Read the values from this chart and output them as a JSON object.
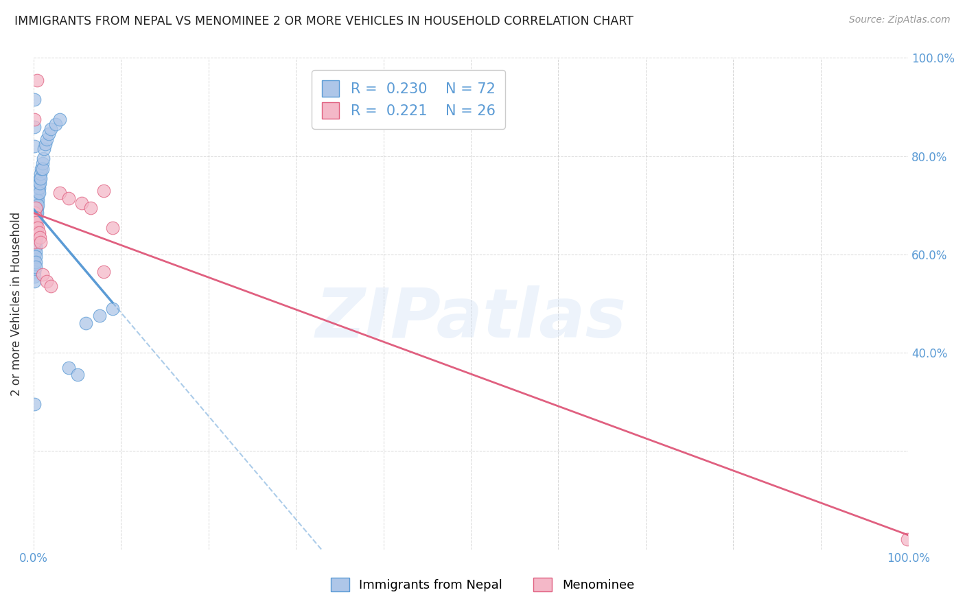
{
  "title": "IMMIGRANTS FROM NEPAL VS MENOMINEE 2 OR MORE VEHICLES IN HOUSEHOLD CORRELATION CHART",
  "source": "Source: ZipAtlas.com",
  "ylabel": "2 or more Vehicles in Household",
  "legend_blue_R": "0.230",
  "legend_blue_N": "72",
  "legend_pink_R": "0.221",
  "legend_pink_N": "26",
  "watermark_text": "ZIPatlas",
  "blue_line_color": "#5b9bd5",
  "pink_line_color": "#e06080",
  "blue_scatter_facecolor": "#aec6e8",
  "blue_scatter_edgecolor": "#5b9bd5",
  "pink_scatter_facecolor": "#f4b8c8",
  "pink_scatter_edgecolor": "#e06080",
  "background_color": "#ffffff",
  "grid_color": "#cccccc",
  "title_color": "#222222",
  "right_axis_color": "#5b9bd5",
  "xmin": 0.0,
  "xmax": 1.0,
  "ymin": 0.0,
  "ymax": 1.0,
  "blue_x": [
    0.0005,
    0.001,
    0.001,
    0.001,
    0.001,
    0.001,
    0.001,
    0.001,
    0.001,
    0.001,
    0.001,
    0.001,
    0.001,
    0.001,
    0.001,
    0.001,
    0.001,
    0.001,
    0.001,
    0.001,
    0.001,
    0.002,
    0.002,
    0.002,
    0.002,
    0.002,
    0.002,
    0.002,
    0.002,
    0.002,
    0.002,
    0.002,
    0.002,
    0.002,
    0.003,
    0.003,
    0.003,
    0.003,
    0.003,
    0.003,
    0.003,
    0.004,
    0.004,
    0.004,
    0.004,
    0.005,
    0.005,
    0.005,
    0.005,
    0.006,
    0.006,
    0.006,
    0.007,
    0.007,
    0.008,
    0.008,
    0.009,
    0.01,
    0.01,
    0.011,
    0.012,
    0.013,
    0.015,
    0.017,
    0.02,
    0.025,
    0.03,
    0.04,
    0.05,
    0.06,
    0.075,
    0.09
  ],
  "blue_y": [
    0.295,
    0.915,
    0.86,
    0.82,
    0.7,
    0.695,
    0.68,
    0.67,
    0.66,
    0.655,
    0.645,
    0.635,
    0.625,
    0.615,
    0.605,
    0.595,
    0.585,
    0.575,
    0.565,
    0.555,
    0.545,
    0.7,
    0.68,
    0.67,
    0.66,
    0.655,
    0.645,
    0.635,
    0.625,
    0.615,
    0.605,
    0.595,
    0.585,
    0.575,
    0.695,
    0.685,
    0.675,
    0.665,
    0.655,
    0.645,
    0.635,
    0.715,
    0.705,
    0.695,
    0.685,
    0.73,
    0.72,
    0.71,
    0.7,
    0.745,
    0.735,
    0.725,
    0.755,
    0.745,
    0.765,
    0.755,
    0.775,
    0.785,
    0.775,
    0.795,
    0.815,
    0.825,
    0.835,
    0.845,
    0.855,
    0.865,
    0.875,
    0.37,
    0.355,
    0.46,
    0.475,
    0.49
  ],
  "pink_x": [
    0.001,
    0.001,
    0.001,
    0.001,
    0.001,
    0.002,
    0.002,
    0.002,
    0.003,
    0.003,
    0.004,
    0.005,
    0.006,
    0.007,
    0.008,
    0.01,
    0.015,
    0.02,
    0.03,
    0.04,
    0.055,
    0.065,
    0.08,
    0.09,
    0.999,
    0.08
  ],
  "pink_y": [
    0.875,
    0.685,
    0.665,
    0.645,
    0.625,
    0.695,
    0.675,
    0.655,
    0.665,
    0.645,
    0.955,
    0.655,
    0.645,
    0.635,
    0.625,
    0.56,
    0.545,
    0.535,
    0.725,
    0.715,
    0.705,
    0.695,
    0.73,
    0.655,
    0.02,
    0.565
  ]
}
